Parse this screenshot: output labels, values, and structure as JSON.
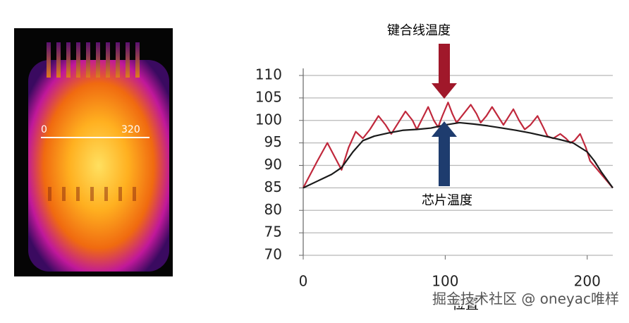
{
  "chart_data": {
    "type": "line",
    "x_label": "位置",
    "xlim": [
      0,
      218
    ],
    "xticks": [
      0,
      100,
      200
    ],
    "ylim": [
      70,
      110
    ],
    "yticks": [
      70,
      75,
      80,
      85,
      90,
      95,
      100,
      105,
      110
    ],
    "grid": true,
    "series": [
      {
        "name": "键合线温度",
        "color": "#c0283c",
        "x": [
          0,
          5,
          10,
          17,
          22,
          27,
          32,
          37,
          42,
          47,
          53,
          58,
          62,
          67,
          72,
          77,
          80,
          84,
          88,
          92,
          95,
          98,
          102,
          105,
          108,
          113,
          118,
          122,
          125,
          129,
          133,
          137,
          141,
          144,
          148,
          152,
          156,
          160,
          165,
          169,
          172,
          176,
          181,
          185,
          188,
          191,
          195,
          199,
          202,
          206,
          210,
          214,
          218
        ],
        "values": [
          85,
          88,
          91,
          95,
          92,
          89,
          94,
          97.5,
          96,
          98,
          101,
          99,
          97,
          99.5,
          102,
          100,
          98,
          100.5,
          103,
          100,
          98.5,
          101,
          104,
          101.5,
          99.5,
          101.5,
          103.5,
          101.5,
          99.5,
          101,
          103,
          101,
          99,
          100.5,
          102.5,
          100,
          98,
          99,
          101,
          98.5,
          96.5,
          96,
          97,
          96,
          95,
          95.5,
          97,
          94,
          91,
          89.5,
          88,
          86.5,
          85
        ]
      },
      {
        "name": "芯片温度",
        "color": "#1a1a1a",
        "x": [
          0,
          10,
          20,
          27,
          35,
          42,
          50,
          60,
          70,
          80,
          90,
          100,
          110,
          120,
          130,
          140,
          150,
          160,
          170,
          180,
          190,
          200,
          205,
          210,
          218
        ],
        "values": [
          85,
          86.5,
          88,
          89.5,
          93,
          95.5,
          96.5,
          97.2,
          97.8,
          98,
          98.3,
          99,
          99.5,
          99.2,
          98.8,
          98.3,
          97.8,
          97.2,
          96.5,
          95.8,
          95,
          93,
          91,
          88.5,
          85
        ]
      }
    ]
  },
  "image_labels": [
    "0",
    "320"
  ],
  "watermark": "掘金技术社区 @ oneyac唯样"
}
